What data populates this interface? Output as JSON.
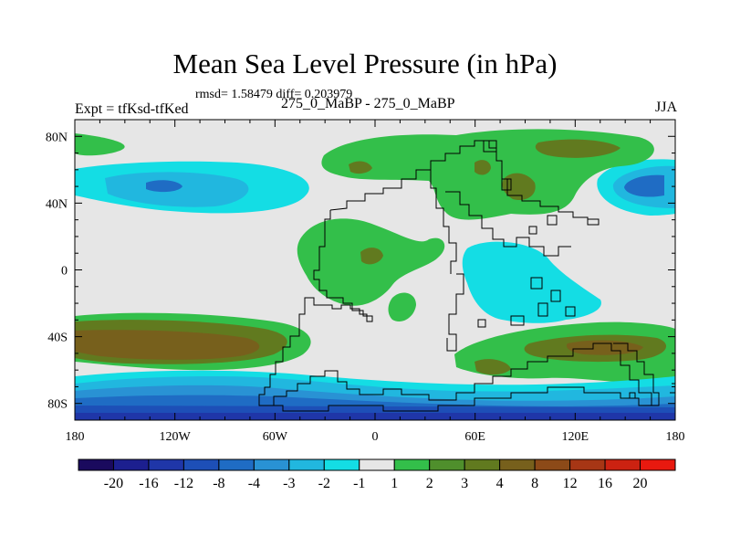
{
  "header": {
    "title": "Mean Sea Level Pressure (in hPa)",
    "stats": "rmsd= 1.58479 diff= 0.203979",
    "left_label": "Expt = tfKsd-tfKed",
    "center_label": "275_0_MaBP - 275_0_MaBP",
    "right_label": "JJA"
  },
  "map": {
    "lon_ticks": [
      "180",
      "120W",
      "60W",
      "0",
      "60E",
      "120E",
      "180"
    ],
    "lat_ticks": [
      "80N",
      "40N",
      "0",
      "40S",
      "80S"
    ],
    "lon_values": [
      -180,
      -120,
      -60,
      0,
      60,
      120,
      180
    ],
    "lat_values": [
      80,
      40,
      0,
      -40,
      -80
    ],
    "lat_range": [
      -90,
      90
    ],
    "lon_range": [
      -180,
      180
    ]
  },
  "colorbar": {
    "labels": [
      "-20",
      "-16",
      "-12",
      "-8",
      "-4",
      "-3",
      "-2",
      "-1",
      "1",
      "2",
      "3",
      "4",
      "8",
      "12",
      "16",
      "20"
    ],
    "colors": [
      "#1a0a5e",
      "#1c1f8f",
      "#1f36a8",
      "#1d4fb7",
      "#1f6cc4",
      "#2992d4",
      "#21b7df",
      "#14dde4",
      "#e6e6e6",
      "#33bf4a",
      "#4f8f2c",
      "#617a1f",
      "#77601c",
      "#8c4a18",
      "#a73615",
      "#cc2211",
      "#e8190f"
    ]
  },
  "palette": {
    "land_outline": "#000000",
    "background_neutral": "#e6e6e6"
  }
}
